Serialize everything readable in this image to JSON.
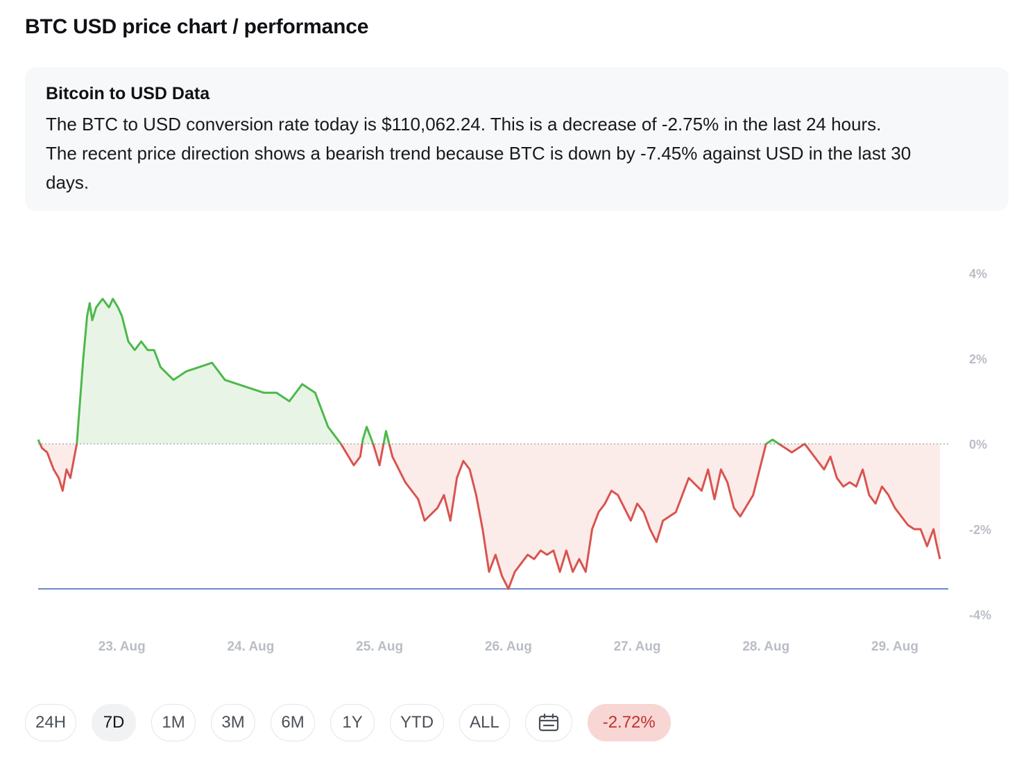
{
  "header": {
    "title": "BTC USD price chart / performance"
  },
  "info": {
    "title": "Bitcoin to USD Data",
    "line1": "The BTC to USD conversion rate today is $110,062.24. This is a decrease of -2.75% in the last 24 hours.",
    "line2": "The recent price direction shows a bearish trend because BTC is down by -7.45% against USD in the last 30",
    "line3": "days."
  },
  "controls": {
    "ranges": [
      "24H",
      "7D",
      "1M",
      "3M",
      "6M",
      "1Y",
      "YTD",
      "ALL"
    ],
    "active": "7D",
    "calendar_icon": "calendar-icon",
    "change": "-2.72%"
  },
  "colors": {
    "up": "#4cb84a",
    "down": "#d9534f",
    "up_fill": "#e8f5e6",
    "down_fill": "#fbecea",
    "low_line": "#4a6fc0",
    "axis_text": "#b9bdc5"
  },
  "chart_data": {
    "type": "area",
    "xlabel": "",
    "ylabel": "",
    "ylim": [
      -4,
      4
    ],
    "y_ticks": [
      "4%",
      "2%",
      "0%",
      "-2%",
      "-4%"
    ],
    "y_tick_values": [
      4,
      2,
      0,
      -2,
      -4
    ],
    "x_ticks": [
      "23. Aug",
      "24. Aug",
      "25. Aug",
      "26. Aug",
      "27. Aug",
      "28. Aug",
      "29. Aug"
    ],
    "x_range": [
      22.35,
      29.35
    ],
    "baseline": 0,
    "reference_low": -3.4,
    "grid": false,
    "legend": "none",
    "series": [
      {
        "x": [
          22.35,
          22.38,
          22.42,
          22.47,
          22.51,
          22.54,
          22.57,
          22.6,
          22.65,
          22.7,
          22.73,
          22.75,
          22.77,
          22.8,
          22.85,
          22.9,
          22.93,
          22.97,
          23.0,
          23.05,
          23.1,
          23.15,
          23.2,
          23.25,
          23.3,
          23.4,
          23.5,
          23.6,
          23.7,
          23.8,
          23.9,
          24.0,
          24.1,
          24.2,
          24.3,
          24.4,
          24.5,
          24.6,
          24.7,
          24.8,
          24.85,
          24.87,
          24.9,
          24.95,
          25.0,
          25.05,
          25.1,
          25.15,
          25.2,
          25.25,
          25.3,
          25.35,
          25.45,
          25.5,
          25.55,
          25.6,
          25.65,
          25.7,
          25.75,
          25.8,
          25.85,
          25.9,
          25.95,
          26.0,
          26.05,
          26.1,
          26.15,
          26.2,
          26.25,
          26.3,
          26.35,
          26.4,
          26.45,
          26.5,
          26.55,
          26.6,
          26.65,
          26.7,
          26.75,
          26.8,
          26.85,
          26.9,
          26.95,
          27.0,
          27.05,
          27.1,
          27.15,
          27.2,
          27.25,
          27.3,
          27.35,
          27.4,
          27.5,
          27.55,
          27.6,
          27.65,
          27.7,
          27.75,
          27.8,
          27.9,
          28.0,
          28.05,
          28.1,
          28.2,
          28.3,
          28.4,
          28.45,
          28.5,
          28.55,
          28.6,
          28.65,
          28.7,
          28.75,
          28.8,
          28.85,
          28.9,
          28.95,
          29.0,
          29.05,
          29.1,
          29.15,
          29.2,
          29.25,
          29.3,
          29.32,
          29.35
        ],
        "y": [
          0.1,
          -0.1,
          -0.2,
          -0.6,
          -0.8,
          -1.1,
          -0.6,
          -0.8,
          0.0,
          2.0,
          3.0,
          3.3,
          2.9,
          3.2,
          3.4,
          3.2,
          3.4,
          3.2,
          3.0,
          2.4,
          2.2,
          2.4,
          2.2,
          2.2,
          1.8,
          1.5,
          1.7,
          1.8,
          1.9,
          1.5,
          1.4,
          1.3,
          1.2,
          1.2,
          1.0,
          1.4,
          1.2,
          0.4,
          0.0,
          -0.5,
          -0.3,
          0.1,
          0.4,
          0.0,
          -0.5,
          0.3,
          -0.3,
          -0.6,
          -0.9,
          -1.1,
          -1.3,
          -1.8,
          -1.5,
          -1.2,
          -1.8,
          -0.8,
          -0.4,
          -0.6,
          -1.2,
          -2.0,
          -3.0,
          -2.6,
          -3.1,
          -3.4,
          -3.0,
          -2.8,
          -2.6,
          -2.7,
          -2.5,
          -2.6,
          -2.5,
          -3.0,
          -2.5,
          -3.0,
          -2.7,
          -3.0,
          -2.0,
          -1.6,
          -1.4,
          -1.1,
          -1.2,
          -1.5,
          -1.8,
          -1.4,
          -1.6,
          -2.0,
          -2.3,
          -1.8,
          -1.7,
          -1.6,
          -1.2,
          -0.8,
          -1.1,
          -0.6,
          -1.3,
          -0.6,
          -0.9,
          -1.5,
          -1.7,
          -1.2,
          0.0,
          0.1,
          0.0,
          -0.2,
          0.0,
          -0.4,
          -0.6,
          -0.3,
          -0.8,
          -1.0,
          -0.9,
          -1.0,
          -0.6,
          -1.2,
          -1.4,
          -1.0,
          -1.2,
          -1.5,
          -1.7,
          -1.9,
          -2.0,
          -2.0,
          -2.4,
          -2.0,
          -2.3,
          -2.7
        ]
      }
    ]
  }
}
